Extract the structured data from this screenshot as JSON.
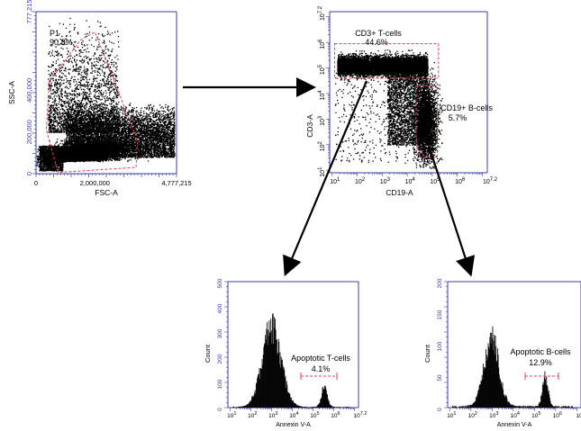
{
  "colors": {
    "axis": "#3b3bb0",
    "dots": "#000000",
    "gate": "#e0405a",
    "hist": "#000000",
    "arrow": "#000000"
  },
  "chart_data": [
    {
      "id": "fsc-ssc",
      "type": "scatter",
      "xlabel": "FSC-A",
      "ylabel": "SSC-A",
      "x_ticks": [
        "0",
        "2,000,000",
        "4,777,215"
      ],
      "y_ticks": [
        "0",
        "200,000",
        "400,000",
        "777,215"
      ],
      "xlim": [
        0,
        4777215
      ],
      "ylim": [
        0,
        777215
      ],
      "gate": {
        "name": "P1",
        "percent": "90.8%"
      }
    },
    {
      "id": "cd19-cd3",
      "type": "scatter",
      "xlabel": "CD19-A",
      "ylabel": "CD3-A",
      "scale": "log",
      "x_ticks": [
        "10^1",
        "10^2",
        "10^3",
        "10^4",
        "10^5",
        "10^6",
        "10^7.2"
      ],
      "y_ticks": [
        "10^1",
        "10^2",
        "10^3",
        "10^4",
        "10^5",
        "10^6",
        "10^7.2"
      ],
      "gates": [
        {
          "name": "CD3+ T-cells",
          "percent": "44.6%"
        },
        {
          "name": "CD19+ B-cells",
          "percent": "5.7%"
        }
      ]
    },
    {
      "id": "annexin-t",
      "type": "histogram",
      "xlabel": "Annexin V-A",
      "ylabel": "Count",
      "scale": "log",
      "x_ticks": [
        "10^1",
        "10^2",
        "10^3",
        "10^4",
        "10^5",
        "10^6",
        "10^7.2"
      ],
      "y_ticks": [
        "0",
        "100",
        "200",
        "300",
        "400",
        "500"
      ],
      "ylim": [
        0,
        500
      ],
      "peaks": [
        {
          "center_log10": 3.0,
          "height": 320,
          "width": 0.45
        },
        {
          "center_log10": 5.55,
          "height": 85,
          "width": 0.14
        }
      ],
      "gate": {
        "name": "Apoptotic T-cells",
        "percent": "4.1%"
      }
    },
    {
      "id": "annexin-b",
      "type": "histogram",
      "xlabel": "Annexin V-A",
      "ylabel": "Count",
      "scale": "log",
      "x_ticks": [
        "10^1",
        "10^2",
        "10^3",
        "10^4",
        "10^5",
        "10^6",
        "10^7.2"
      ],
      "y_ticks": [
        "0",
        "50",
        "100",
        "150",
        "200"
      ],
      "ylim": [
        0,
        200
      ],
      "peaks": [
        {
          "center_log10": 2.95,
          "height": 110,
          "width": 0.35
        },
        {
          "center_log10": 5.5,
          "height": 48,
          "width": 0.13
        }
      ],
      "gate": {
        "name": "Apoptotic B-cells",
        "percent": "12.9%"
      }
    }
  ]
}
